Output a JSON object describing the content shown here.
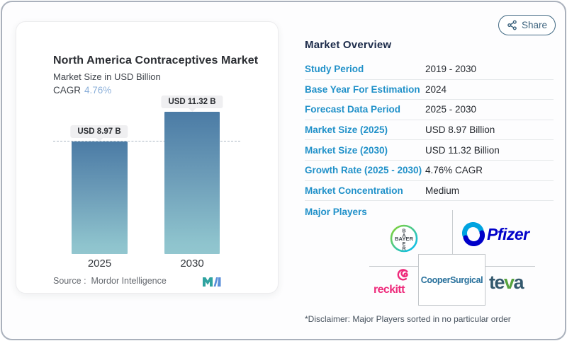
{
  "left_card": {
    "title": "North America Contraceptives Market",
    "subtitle": "Market Size in USD Billion",
    "cagr_label": "CAGR",
    "cagr_value": "4.76%",
    "source_label": "Source :",
    "source_value": "Mordor Intelligence"
  },
  "chart_data": {
    "type": "bar",
    "categories": [
      "2025",
      "2030"
    ],
    "values": [
      8.97,
      11.32
    ],
    "bar_labels": [
      "USD 8.97 B",
      "USD 11.32 B"
    ],
    "title": "North America Contraceptives Market",
    "ylabel": "Market Size in USD Billion",
    "cagr": "4.76%",
    "ylim": [
      0,
      12
    ],
    "reference_line": 8.97,
    "legend": "none",
    "grid": "off",
    "colors": {
      "bar_top": "#4b7ba5",
      "bar_bottom": "#92c6cf",
      "reference_dash": "#a9b6c2"
    }
  },
  "share": {
    "label": "Share"
  },
  "overview": {
    "heading": "Market Overview",
    "rows": [
      {
        "label": "Study Period",
        "value": "2019 - 2030"
      },
      {
        "label": "Base Year For Estimation",
        "value": "2024"
      },
      {
        "label": "Forecast Data Period",
        "value": "2025 - 2030"
      },
      {
        "label": "Market Size (2025)",
        "value": "USD 8.97 Billion"
      },
      {
        "label": "Market Size (2030)",
        "value": "USD 11.32 Billion"
      },
      {
        "label": "Growth Rate (2025 - 2030)",
        "value": "4.76% CAGR"
      },
      {
        "label": "Market Concentration",
        "value": "Medium"
      }
    ],
    "major_players_label": "Major Players",
    "players": {
      "bayer": {
        "word": "BAYER",
        "vertical_top": [
          "B",
          "A"
        ],
        "vertical_bottom": [
          "E",
          "R"
        ]
      },
      "pfizer": {
        "word": "Pfizer"
      },
      "reckitt": {
        "word": "reckitt"
      },
      "cooper": {
        "word": "CooperSurgical"
      },
      "teva": {
        "t": "te",
        "v": "v",
        "a": "a"
      }
    },
    "disclaimer": "*Disclaimer: Major Players sorted in no particular order"
  },
  "brand_colors": {
    "label_blue": "#2191c9",
    "heading_navy": "#1b2a49",
    "pfizer_blue": "#0000c9",
    "pfizer_light_blue": "#00a3e0",
    "reckitt_pink": "#ee2a7b",
    "cooper_blue": "#29719c",
    "teva_slate": "#33586d",
    "teva_green": "#57a33e",
    "bayer_green": "#89d329",
    "bayer_blue": "#00bcff",
    "mi_teal": "#2fa3a0",
    "mi_blue": "#5b8fd9"
  }
}
